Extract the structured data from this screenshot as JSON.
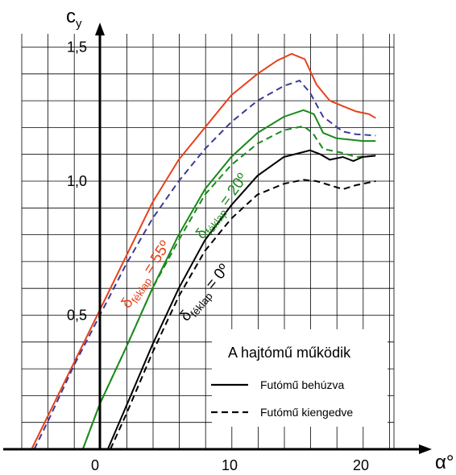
{
  "chart_data": {
    "type": "line",
    "xlabel": "α°",
    "ylabel": "cy",
    "xlim": [
      -6.6,
      22.6
    ],
    "ylim": [
      0,
      1.55
    ],
    "x_ticks": [
      {
        "v": 0,
        "label": "0"
      },
      {
        "v": 10,
        "label": "10"
      },
      {
        "v": 20,
        "label": "20"
      }
    ],
    "y_ticks": [
      {
        "v": 0.5,
        "label": "0,5"
      },
      {
        "v": 1.0,
        "label": "1,0"
      },
      {
        "v": 1.5,
        "label": "1,5"
      }
    ],
    "grid": true,
    "legend": {
      "title": "A hajtómű működik",
      "position": "bottom-right",
      "entries": [
        {
          "label": "Futómű behúzva",
          "style": "solid"
        },
        {
          "label": "Futómű kiengedve",
          "style": "dashed"
        }
      ]
    },
    "curve_labels": [
      {
        "main": "δ",
        "sub": "féklap",
        "rest": " = 55º",
        "color": "#e8401a"
      },
      {
        "main": "δ",
        "sub": "féklap",
        "rest": " = 20º",
        "color": "#1a8a1a"
      },
      {
        "main": "δ",
        "sub": "féklap",
        "rest": " = 0º",
        "color": "#000000"
      }
    ],
    "series": [
      {
        "color": "#e8401a",
        "style": "solid",
        "points": [
          [
            -5.2,
            0
          ],
          [
            -4,
            0.12
          ],
          [
            -2,
            0.32
          ],
          [
            0,
            0.52
          ],
          [
            2,
            0.72
          ],
          [
            4,
            0.92
          ],
          [
            6,
            1.08
          ],
          [
            8,
            1.2
          ],
          [
            10,
            1.32
          ],
          [
            12,
            1.4
          ],
          [
            13.5,
            1.45
          ],
          [
            14.6,
            1.475
          ],
          [
            15.6,
            1.455
          ],
          [
            16.5,
            1.36
          ],
          [
            17.5,
            1.3
          ],
          [
            18.5,
            1.28
          ],
          [
            19.5,
            1.26
          ],
          [
            20.5,
            1.25
          ],
          [
            21,
            1.235
          ]
        ]
      },
      {
        "color": "#3c3c96",
        "style": "dashed",
        "points": [
          [
            -5,
            0
          ],
          [
            -4,
            0.1
          ],
          [
            -2,
            0.31
          ],
          [
            0,
            0.5
          ],
          [
            2,
            0.69
          ],
          [
            4,
            0.86
          ],
          [
            6,
            1.0
          ],
          [
            8,
            1.12
          ],
          [
            10,
            1.22
          ],
          [
            12,
            1.3
          ],
          [
            14,
            1.355
          ],
          [
            15.2,
            1.375
          ],
          [
            16,
            1.33
          ],
          [
            17,
            1.24
          ],
          [
            18.5,
            1.185
          ],
          [
            19.5,
            1.175
          ],
          [
            21,
            1.17
          ]
        ]
      },
      {
        "color": "#1a8a1a",
        "style": "solid",
        "points": [
          [
            -1.3,
            0
          ],
          [
            0,
            0.17
          ],
          [
            2,
            0.38
          ],
          [
            4,
            0.6
          ],
          [
            6,
            0.8
          ],
          [
            8,
            0.97
          ],
          [
            10,
            1.09
          ],
          [
            12,
            1.18
          ],
          [
            14,
            1.24
          ],
          [
            15.5,
            1.265
          ],
          [
            16.3,
            1.25
          ],
          [
            17,
            1.18
          ],
          [
            18,
            1.16
          ],
          [
            19,
            1.155
          ],
          [
            20,
            1.15
          ],
          [
            21,
            1.15
          ]
        ]
      },
      {
        "color": "#1a8a1a",
        "style": "dashed",
        "points": [
          [
            -1.3,
            0
          ],
          [
            0,
            0.17
          ],
          [
            2,
            0.38
          ],
          [
            4,
            0.6
          ],
          [
            6,
            0.78
          ],
          [
            8,
            0.95
          ],
          [
            10,
            1.06
          ],
          [
            12,
            1.14
          ],
          [
            14,
            1.19
          ],
          [
            15.5,
            1.205
          ],
          [
            16.2,
            1.18
          ],
          [
            17,
            1.12
          ],
          [
            18.5,
            1.105
          ],
          [
            19.5,
            1.09
          ],
          [
            21,
            1.095
          ]
        ]
      },
      {
        "color": "#000000",
        "style": "solid",
        "points": [
          [
            0.6,
            0
          ],
          [
            2,
            0.16
          ],
          [
            4,
            0.39
          ],
          [
            6,
            0.6
          ],
          [
            8,
            0.78
          ],
          [
            10,
            0.91
          ],
          [
            12,
            1.02
          ],
          [
            14,
            1.09
          ],
          [
            16,
            1.115
          ],
          [
            16.8,
            1.1
          ],
          [
            17.5,
            1.08
          ],
          [
            18.5,
            1.09
          ],
          [
            19.3,
            1.075
          ],
          [
            20,
            1.09
          ],
          [
            21,
            1.095
          ]
        ]
      },
      {
        "color": "#000000",
        "style": "dashed",
        "points": [
          [
            0.8,
            0
          ],
          [
            2,
            0.13
          ],
          [
            4,
            0.36
          ],
          [
            6,
            0.57
          ],
          [
            8,
            0.74
          ],
          [
            10,
            0.86
          ],
          [
            12,
            0.95
          ],
          [
            14,
            0.99
          ],
          [
            15.5,
            1.005
          ],
          [
            16.5,
            1.0
          ],
          [
            17.5,
            0.985
          ],
          [
            18.5,
            0.97
          ],
          [
            19.5,
            0.985
          ],
          [
            21,
            1.0
          ]
        ]
      }
    ]
  }
}
